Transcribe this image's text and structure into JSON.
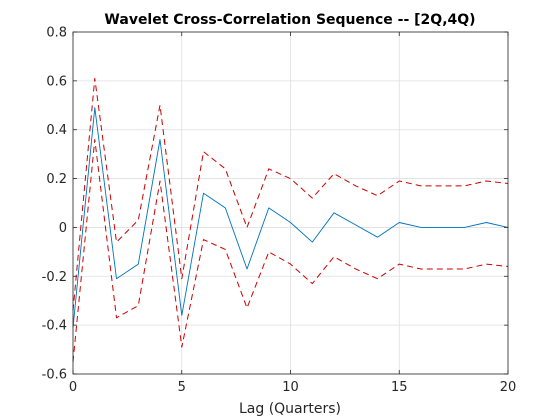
{
  "chart_data": {
    "type": "line",
    "title": "Wavelet Cross-Correlation Sequence -- [2Q,4Q)",
    "xlabel": "Lag (Quarters)",
    "ylabel": "",
    "xlim": [
      0,
      20
    ],
    "ylim": [
      -0.6,
      0.8
    ],
    "x_ticks": [
      0,
      5,
      10,
      15,
      20
    ],
    "y_ticks": [
      -0.6,
      -0.4,
      -0.2,
      0,
      0.2,
      0.4,
      0.6,
      0.8
    ],
    "x_tick_labels": [
      "0",
      "5",
      "10",
      "15",
      "20"
    ],
    "y_tick_labels": [
      "-0.6",
      "-0.4",
      "-0.2",
      "0",
      "0.2",
      "0.4",
      "0.6",
      "0.8"
    ],
    "grid": true,
    "box": true,
    "x": [
      0,
      1,
      2,
      3,
      4,
      5,
      6,
      7,
      8,
      9,
      10,
      11,
      12,
      13,
      14,
      15,
      16,
      17,
      18,
      19,
      20
    ],
    "series": [
      {
        "role": "estimate",
        "color": "#0072BD",
        "style": "solid",
        "values": [
          -0.41,
          0.49,
          -0.21,
          -0.15,
          0.36,
          -0.36,
          0.14,
          0.08,
          -0.17,
          0.08,
          0.02,
          -0.06,
          0.06,
          0.01,
          -0.04,
          0.02,
          0.0,
          0.0,
          0.0,
          0.02,
          0.0
        ]
      },
      {
        "role": "upper",
        "color": "#cc0000",
        "style": "dashed",
        "values": [
          -0.34,
          0.61,
          -0.06,
          0.03,
          0.5,
          -0.21,
          0.31,
          0.24,
          0.0,
          0.24,
          0.2,
          0.12,
          0.22,
          0.17,
          0.13,
          0.19,
          0.17,
          0.17,
          0.17,
          0.19,
          0.18
        ]
      },
      {
        "role": "lower",
        "color": "#cc0000",
        "style": "dashed",
        "values": [
          -0.55,
          0.36,
          -0.37,
          -0.32,
          0.19,
          -0.49,
          -0.05,
          -0.09,
          -0.33,
          -0.1,
          -0.15,
          -0.23,
          -0.12,
          -0.17,
          -0.21,
          -0.15,
          -0.17,
          -0.17,
          -0.17,
          -0.15,
          -0.16
        ]
      }
    ]
  }
}
